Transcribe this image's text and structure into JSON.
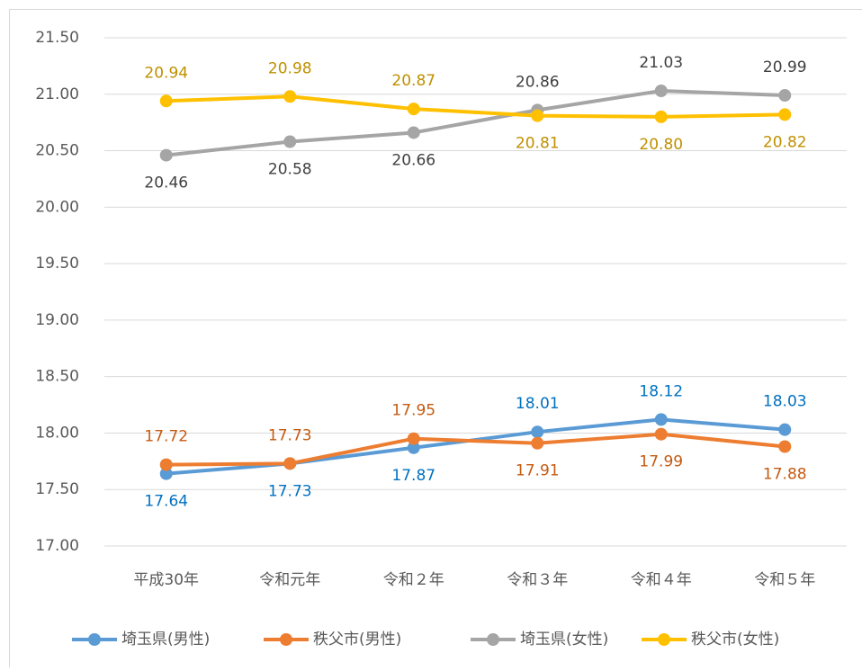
{
  "chart_data": {
    "type": "line",
    "categories": [
      "平成30年",
      "令和元年",
      "令和２年",
      "令和３年",
      "令和４年",
      "令和５年"
    ],
    "series": [
      {
        "name": "埼玉県(男性)",
        "color": "#5b9bd5",
        "label_color": "#0070c0",
        "values": [
          17.64,
          17.73,
          17.87,
          18.01,
          18.12,
          18.03
        ],
        "value_labels": [
          "17.64",
          "17.73",
          "17.87",
          "18.01",
          "18.12",
          "18.03"
        ]
      },
      {
        "name": "秩父市(男性)",
        "color": "#ed7d31",
        "label_color": "#c55a11",
        "values": [
          17.72,
          17.73,
          17.95,
          17.91,
          17.99,
          17.88
        ],
        "value_labels": [
          "17.72",
          "17.73",
          "17.95",
          "17.91",
          "17.99",
          "17.88"
        ]
      },
      {
        "name": "埼玉県(女性)",
        "color": "#a5a5a5",
        "label_color": "#404040",
        "values": [
          20.46,
          20.58,
          20.66,
          20.86,
          21.03,
          20.99
        ],
        "value_labels": [
          "20.46",
          "20.58",
          "20.66",
          "20.86",
          "21.03",
          "20.99"
        ]
      },
      {
        "name": "秩父市(女性)",
        "color": "#ffc000",
        "label_color": "#bf9000",
        "values": [
          20.94,
          20.98,
          20.87,
          20.81,
          20.8,
          20.82
        ],
        "value_labels": [
          "20.94",
          "20.98",
          "20.87",
          "20.81",
          "20.80",
          "20.82"
        ]
      }
    ],
    "ylim": [
      17,
      21.5
    ],
    "yticks": [
      {
        "value": 17,
        "label": "17.00"
      },
      {
        "value": 17.5,
        "label": "17.50"
      },
      {
        "value": 18,
        "label": "18.00"
      },
      {
        "value": 18.5,
        "label": "18.50"
      },
      {
        "value": 19,
        "label": "19.00"
      },
      {
        "value": 19.5,
        "label": "19.50"
      },
      {
        "value": 20,
        "label": "20.00"
      },
      {
        "value": 20.5,
        "label": "20.50"
      },
      {
        "value": 21,
        "label": "21.00"
      },
      {
        "value": 21.5,
        "label": "21.50"
      }
    ],
    "grid": true,
    "legend": "bottom"
  }
}
